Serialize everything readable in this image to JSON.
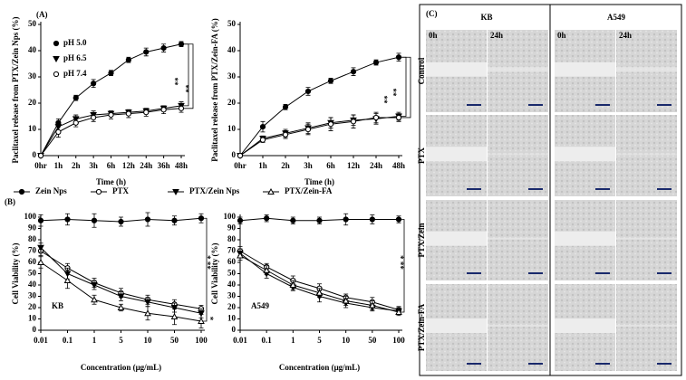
{
  "chart_data": [
    {
      "type": "line",
      "panel": "(A)",
      "ylabel": "Paclitaxel release from PTX/Zein Nps (%)",
      "xlabel": "Time (h)",
      "categories": [
        "0hr",
        "1h",
        "2h",
        "3h",
        "6h",
        "12h",
        "24h",
        "36h",
        "48h"
      ],
      "ylim": [
        0,
        50
      ],
      "yticks": [
        0,
        10,
        20,
        30,
        40,
        50
      ],
      "legend": "upper left",
      "series": [
        {
          "name": "pH 5.0",
          "color": "#000000",
          "marker": "circle",
          "values": [
            0,
            12.5,
            22,
            27.5,
            31.5,
            36.5,
            39.5,
            41,
            42.5
          ],
          "errors": [
            0,
            1.5,
            1,
            1.5,
            1,
            1,
            1.5,
            1.5,
            1
          ]
        },
        {
          "name": "pH 6.5",
          "color": "#000000",
          "marker": "triangle-down",
          "values": [
            0,
            11,
            14,
            15.5,
            16,
            16.5,
            17,
            18,
            19
          ],
          "errors": [
            0,
            1.5,
            1.5,
            1.5,
            1,
            1,
            1,
            1,
            1.5
          ]
        },
        {
          "name": "pH 7.4",
          "color": "#000000",
          "marker": "circle-open",
          "values": [
            0,
            9,
            12.5,
            14.5,
            15.5,
            16,
            16.5,
            17.5,
            18
          ],
          "errors": [
            0,
            2,
            1.5,
            1.5,
            1.5,
            1.5,
            1.5,
            1.5,
            1.5
          ]
        }
      ],
      "annotations": [
        "**",
        "**"
      ]
    },
    {
      "type": "line",
      "ylabel": "Paclitaxel release from PTX/Zein-FA (%)",
      "xlabel": "Time (h)",
      "categories": [
        "0hr",
        "1h",
        "2h",
        "3h",
        "6h",
        "12h",
        "24h",
        "48h"
      ],
      "ylim": [
        0,
        50
      ],
      "yticks": [
        0,
        10,
        20,
        30,
        40,
        50
      ],
      "series": [
        {
          "color": "#000000",
          "marker": "circle",
          "values": [
            0,
            11,
            18.5,
            24.5,
            28.5,
            32,
            35.5,
            37.5
          ],
          "errors": [
            0,
            2,
            1,
            1.5,
            1,
            1.5,
            1,
            1.5
          ]
        },
        {
          "color": "#000000",
          "marker": "triangle-down",
          "values": [
            0,
            6.5,
            8.5,
            10.5,
            12.5,
            13.5,
            14,
            15
          ],
          "errors": [
            0,
            1,
            1.5,
            2,
            2,
            2,
            2,
            1.5
          ]
        },
        {
          "color": "#000000",
          "marker": "circle-open",
          "values": [
            0,
            6,
            8,
            10,
            12,
            13,
            14.5,
            14.5
          ],
          "errors": [
            0,
            1,
            1.5,
            2,
            2.5,
            2.5,
            2,
            1.5
          ]
        }
      ],
      "annotations": [
        "**",
        "**"
      ]
    },
    {
      "type": "line",
      "panel": "(B)",
      "ylabel": "Cell Viability (%)",
      "xlabel": "Concentration (μg/mL)",
      "note": "KB",
      "categories": [
        "0.01",
        "0.1",
        "1",
        "5",
        "10",
        "50",
        "100"
      ],
      "ylim": [
        0,
        100
      ],
      "yticks": [
        0,
        10,
        20,
        30,
        40,
        50,
        60,
        70,
        80,
        90,
        100
      ],
      "legend": "top",
      "series": [
        {
          "name": "Zein Nps",
          "color": "#000000",
          "marker": "circle",
          "values": [
            97,
            98,
            97,
            96,
            98,
            97,
            99
          ],
          "errors": [
            5,
            5,
            6,
            4,
            6,
            4,
            4
          ]
        },
        {
          "name": "PTX",
          "color": "#000000",
          "marker": "circle-open",
          "values": [
            70,
            55,
            42,
            33,
            27,
            23,
            19
          ],
          "errors": [
            4,
            4,
            4,
            4,
            4,
            4,
            3
          ]
        },
        {
          "name": "PTX/Zein Nps",
          "color": "#000000",
          "marker": "triangle-down",
          "values": [
            73,
            50,
            40,
            30,
            25,
            20,
            15
          ],
          "errors": [
            4,
            5,
            4,
            4,
            4,
            4,
            4
          ]
        },
        {
          "name": "PTX/Zein-FA",
          "color": "#000000",
          "marker": "triangle-open",
          "values": [
            60,
            44,
            27,
            20,
            15,
            12,
            8
          ],
          "errors": [
            5,
            7,
            4,
            3,
            6,
            7,
            6
          ]
        }
      ],
      "annotations": [
        "* **",
        "*"
      ]
    },
    {
      "type": "line",
      "ylabel": "Cell Viability (%)",
      "xlabel": "Concentration (μg/mL)",
      "note": "A549",
      "categories": [
        "0.01",
        "0.1",
        "1",
        "5",
        "10",
        "50",
        "100"
      ],
      "ylim": [
        0,
        100
      ],
      "yticks": [
        0,
        10,
        20,
        30,
        40,
        50,
        60,
        70,
        80,
        90,
        100
      ],
      "series": [
        {
          "color": "#000000",
          "marker": "circle",
          "values": [
            97,
            99,
            97,
            97,
            98,
            98,
            98
          ],
          "errors": [
            3,
            3,
            3,
            3,
            5,
            4,
            3
          ]
        },
        {
          "color": "#000000",
          "marker": "circle-open",
          "values": [
            70,
            56,
            44,
            37,
            29,
            25,
            18
          ],
          "errors": [
            4,
            3,
            4,
            4,
            3,
            4,
            3
          ]
        },
        {
          "color": "#000000",
          "marker": "triangle-down",
          "values": [
            68,
            50,
            38,
            30,
            24,
            20,
            17
          ],
          "errors": [
            4,
            4,
            3,
            5,
            4,
            3,
            3
          ]
        },
        {
          "color": "#000000",
          "marker": "triangle-open",
          "values": [
            66,
            53,
            40,
            33,
            26,
            22,
            16
          ],
          "errors": [
            4,
            4,
            4,
            4,
            4,
            4,
            3
          ]
        }
      ],
      "annotations": [
        "* **"
      ]
    }
  ],
  "panel_c": {
    "label": "(C)",
    "columns": [
      "KB",
      "A549"
    ],
    "times": [
      "0h",
      "24h",
      "0h",
      "24h"
    ],
    "rows": [
      "Control",
      "PTX",
      "PTX/Zein",
      "PTX/Zein-FA"
    ]
  }
}
